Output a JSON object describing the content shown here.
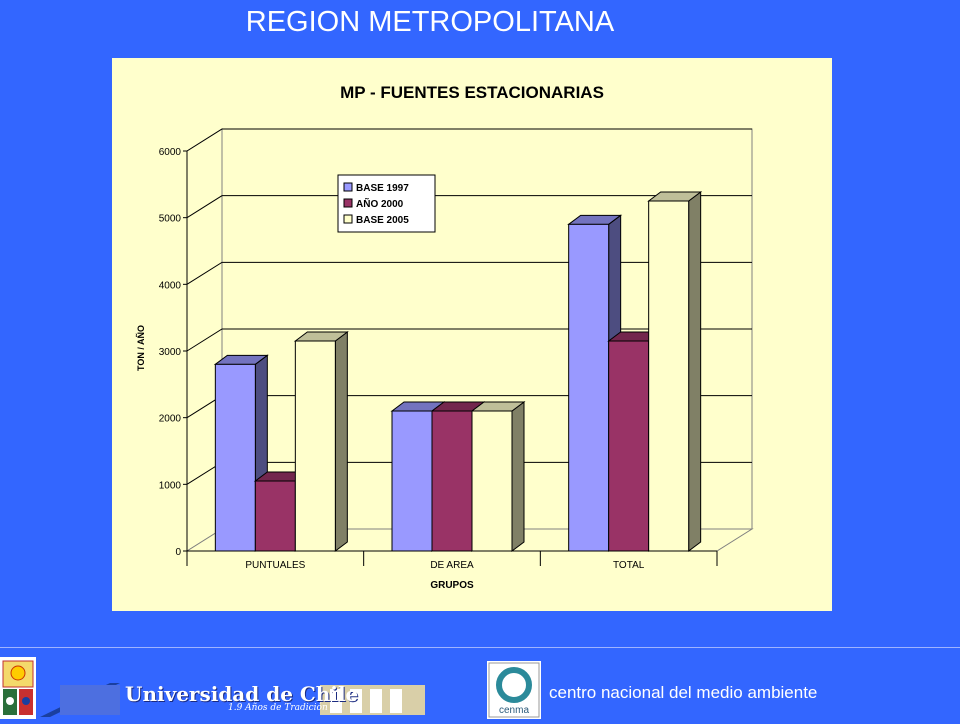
{
  "page": {
    "title": "REGION METROPOLITANA",
    "footer": {
      "university_name": "Universidad de Chile",
      "university_tagline": "1.9 Años de Tradición",
      "center_name": "centro nacional del medio ambiente",
      "center_logo_text": "cenma"
    }
  },
  "colors": {
    "background": "#3366ff",
    "panel": "#ffffcc",
    "base_1997": "#9999ff",
    "ano_2000": "#993366",
    "base_2005": "#ffffcc"
  },
  "chart_data": {
    "type": "bar",
    "title": "MP - FUENTES ESTACIONARIAS",
    "xlabel": "GRUPOS",
    "ylabel": "TON / AÑO",
    "categories": [
      "PUNTUALES",
      "DE AREA",
      "TOTAL"
    ],
    "series": [
      {
        "name": "BASE 1997",
        "values": [
          2800,
          2100,
          4900
        ]
      },
      {
        "name": "AÑO 2000",
        "values": [
          1050,
          2100,
          3150
        ]
      },
      {
        "name": "BASE 2005",
        "values": [
          3150,
          2100,
          5250
        ]
      }
    ],
    "ylim": [
      0,
      6000
    ],
    "yticks": [
      "0",
      "1000",
      "2000",
      "3000",
      "4000",
      "5000",
      "6000"
    ],
    "grid": true,
    "legend_position": "top-center",
    "three_d": true
  }
}
